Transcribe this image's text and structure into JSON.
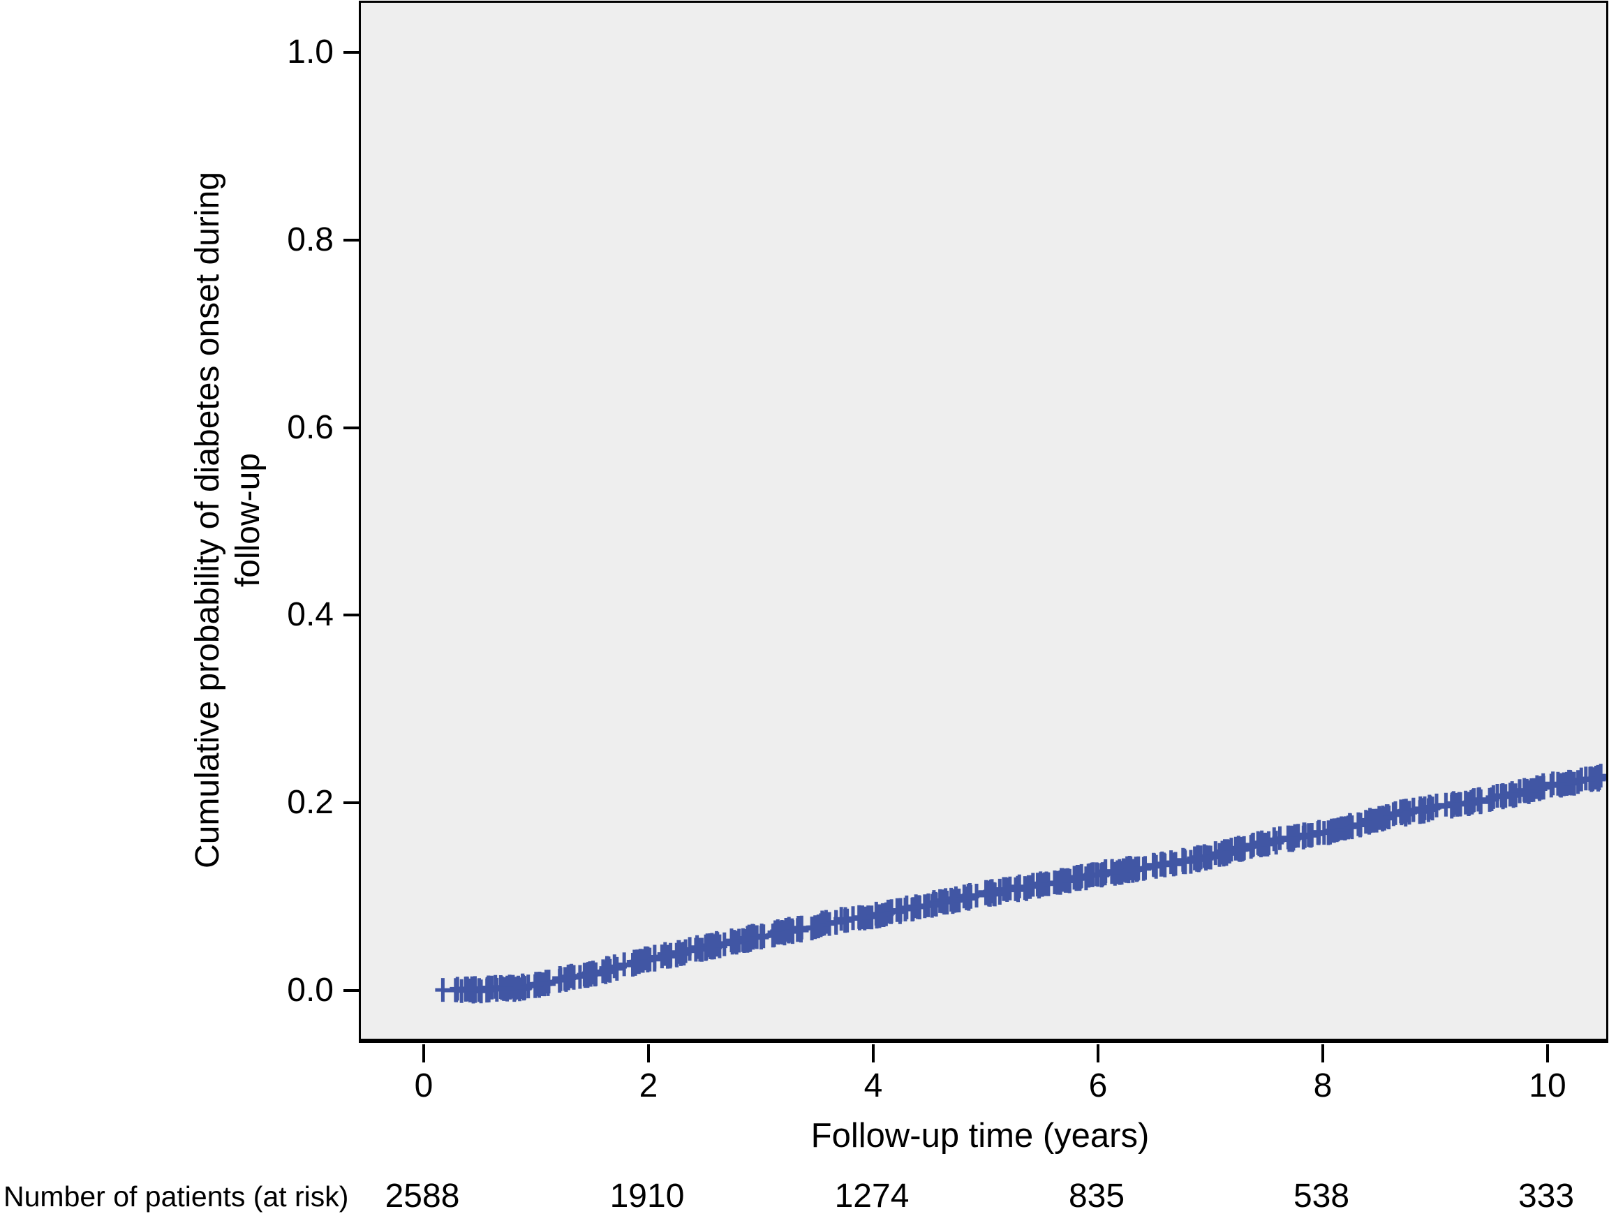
{
  "figure": {
    "y_axis": {
      "label_line1": "Cumulative probability of diabetes onset during",
      "label_line2": "follow-up",
      "ticks": [
        "1.0",
        "0.8",
        "0.6",
        "0.4",
        "0.2",
        "0.0"
      ]
    },
    "x_axis": {
      "label": "Follow-up time (years)",
      "ticks": [
        "0",
        "2",
        "4",
        "6",
        "8",
        "10"
      ]
    },
    "at_risk": {
      "label": "Number of patients (at risk)",
      "values": [
        "2588",
        "1910",
        "1274",
        "835",
        "538",
        "333"
      ]
    }
  },
  "chart_data": {
    "type": "line",
    "subtype": "kaplan-meier-cumulative-incidence-step-curve",
    "title": "",
    "xlabel": "Follow-up time (years)",
    "ylabel": "Cumulative probability of diabetes onset during follow-up",
    "xlim": [
      -0.56,
      10.52
    ],
    "ylim": [
      -0.05,
      1.05
    ],
    "x_ticks": [
      0,
      2,
      4,
      6,
      8,
      10
    ],
    "y_ticks": [
      0.0,
      0.2,
      0.4,
      0.6,
      0.8,
      1.0
    ],
    "grid": false,
    "legend": "none",
    "plot_background": "#eeeeee",
    "series": [
      {
        "name": "Cumulative probability of diabetes onset",
        "color": "#4156a4",
        "style": "step-with-censor-marks",
        "points": [
          [
            0.17,
            0.0
          ],
          [
            0.5,
            0.001
          ],
          [
            0.85,
            0.003
          ],
          [
            1.2,
            0.011
          ],
          [
            1.6,
            0.021
          ],
          [
            2.0,
            0.033
          ],
          [
            2.5,
            0.046
          ],
          [
            3.0,
            0.058
          ],
          [
            3.7,
            0.074
          ],
          [
            4.0,
            0.08
          ],
          [
            4.5,
            0.092
          ],
          [
            5.0,
            0.103
          ],
          [
            5.3,
            0.109
          ],
          [
            6.0,
            0.124
          ],
          [
            6.5,
            0.133
          ],
          [
            6.9,
            0.141
          ],
          [
            7.3,
            0.152
          ],
          [
            7.6,
            0.16
          ],
          [
            8.0,
            0.168
          ],
          [
            8.35,
            0.178
          ],
          [
            8.65,
            0.188
          ],
          [
            9.0,
            0.195
          ],
          [
            9.6,
            0.207
          ],
          [
            10.0,
            0.218
          ],
          [
            10.3,
            0.224
          ],
          [
            10.5,
            0.228
          ]
        ],
        "censoring": "dense plus-sign censor ticks along entire curve from 0.17 to 10.5 years"
      }
    ],
    "number_at_risk": {
      "label": "Number of patients (at risk)",
      "times": [
        0,
        2,
        4,
        6,
        8,
        10
      ],
      "counts": [
        2588,
        1910,
        1274,
        835,
        538,
        333
      ]
    }
  },
  "style": {
    "curve_color": "#4156a4",
    "plot_background": "#eeeeee",
    "axis_color": "#000000",
    "text_color": "#000000"
  }
}
